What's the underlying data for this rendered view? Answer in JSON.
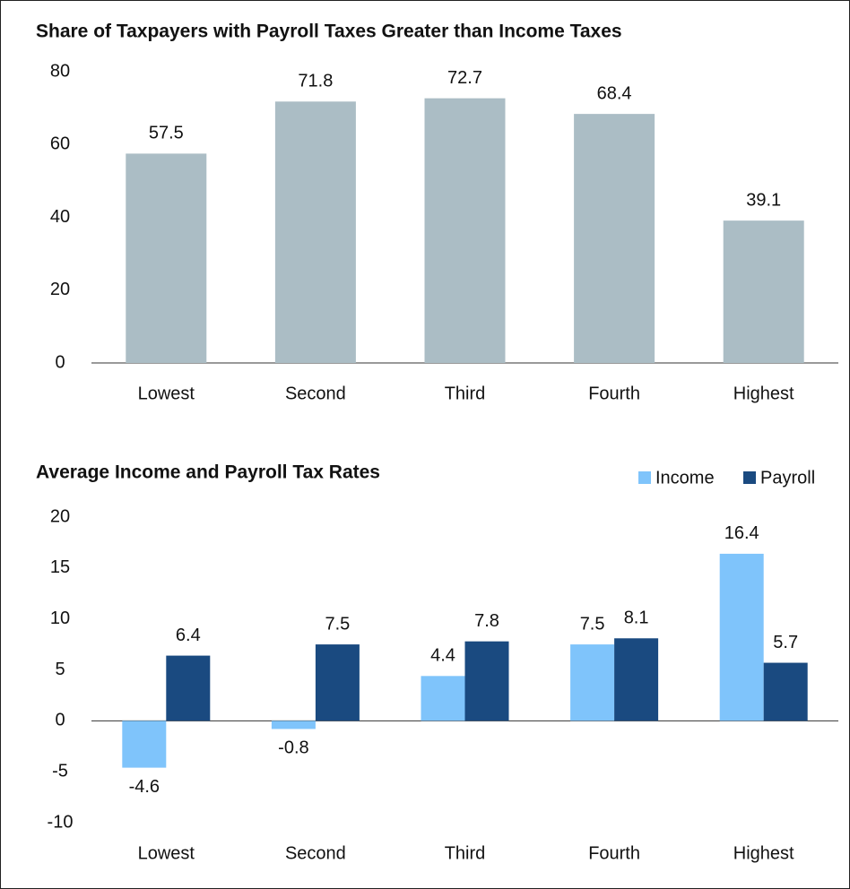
{
  "chart_data": [
    {
      "type": "bar",
      "title": "Share of Taxpayers with Payroll Taxes Greater than Income Taxes",
      "categories": [
        "Lowest",
        "Second",
        "Third",
        "Fourth",
        "Highest"
      ],
      "values": [
        57.5,
        71.8,
        72.7,
        68.4,
        39.1
      ],
      "color": "#abbdc5",
      "ylim": [
        0,
        80
      ],
      "yticks": [
        0,
        20,
        40,
        60,
        80
      ]
    },
    {
      "type": "grouped_bar",
      "title": "Average Income and Payroll Tax Rates",
      "categories": [
        "Lowest",
        "Second",
        "Third",
        "Fourth",
        "Highest"
      ],
      "series": [
        {
          "name": "Income",
          "color": "#7fc4fb",
          "values": [
            -4.6,
            -0.8,
            4.4,
            7.5,
            16.4
          ]
        },
        {
          "name": "Payroll",
          "color": "#1a4a80",
          "values": [
            6.4,
            7.5,
            7.8,
            8.1,
            5.7
          ]
        }
      ],
      "legend": "top-right",
      "ylim": [
        -10,
        20
      ],
      "yticks": [
        -10,
        -5,
        0,
        5,
        10,
        15,
        20
      ]
    }
  ]
}
